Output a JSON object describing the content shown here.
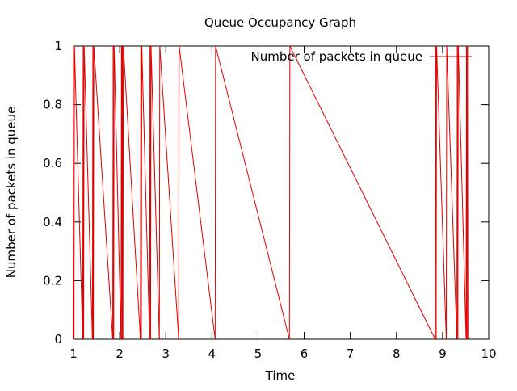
{
  "chart_data": {
    "type": "line",
    "title": "Queue Occupancy Graph",
    "xlabel": "Time",
    "ylabel": "Number of packets in queue",
    "xlim": [
      1,
      10
    ],
    "ylim": [
      0,
      1
    ],
    "x_ticks": [
      1,
      2,
      3,
      4,
      5,
      6,
      7,
      8,
      9,
      10
    ],
    "y_ticks": [
      0,
      0.2,
      0.4,
      0.6,
      0.8,
      1
    ],
    "x_tick_labels": [
      "1",
      "2",
      "3",
      "4",
      "5",
      "6",
      "7",
      "8",
      "9",
      "10"
    ],
    "y_tick_labels": [
      "0",
      "0.2",
      "0.4",
      "0.6",
      "0.8",
      "1"
    ],
    "grid": false,
    "legend": {
      "position": "top-right",
      "entries": [
        "Number of packets in queue"
      ]
    },
    "series": [
      {
        "name": "Number of packets in queue",
        "color": "#e00000",
        "points": [
          [
            0.99,
            0
          ],
          [
            1.0,
            1
          ],
          [
            1.01,
            0
          ],
          [
            1.02,
            1
          ],
          [
            1.2,
            0
          ],
          [
            1.21,
            1
          ],
          [
            1.22,
            0
          ],
          [
            1.23,
            1
          ],
          [
            1.41,
            0
          ],
          [
            1.42,
            1
          ],
          [
            1.43,
            0
          ],
          [
            1.44,
            1
          ],
          [
            1.85,
            0
          ],
          [
            1.86,
            1
          ],
          [
            1.87,
            0
          ],
          [
            1.88,
            1
          ],
          [
            2.03,
            0
          ],
          [
            2.04,
            1
          ],
          [
            2.05,
            0
          ],
          [
            2.06,
            1
          ],
          [
            2.07,
            0
          ],
          [
            2.08,
            1
          ],
          [
            2.45,
            0
          ],
          [
            2.46,
            1
          ],
          [
            2.47,
            0
          ],
          [
            2.48,
            1
          ],
          [
            2.65,
            0
          ],
          [
            2.66,
            1
          ],
          [
            2.67,
            0
          ],
          [
            2.68,
            1
          ],
          [
            2.86,
            0
          ],
          [
            2.87,
            1
          ],
          [
            3.28,
            0
          ],
          [
            3.29,
            1
          ],
          [
            4.07,
            0
          ],
          [
            4.08,
            1
          ],
          [
            5.68,
            0
          ],
          [
            5.69,
            1
          ],
          [
            8.84,
            0
          ],
          [
            8.85,
            1
          ],
          [
            8.86,
            0
          ],
          [
            8.87,
            1
          ],
          [
            9.08,
            0
          ],
          [
            9.09,
            1
          ],
          [
            9.31,
            0
          ],
          [
            9.32,
            1
          ],
          [
            9.33,
            0
          ],
          [
            9.34,
            1
          ],
          [
            9.51,
            0
          ],
          [
            9.52,
            1
          ],
          [
            9.53,
            0
          ],
          [
            9.54,
            1
          ],
          [
            9.55,
            0
          ]
        ]
      }
    ]
  }
}
